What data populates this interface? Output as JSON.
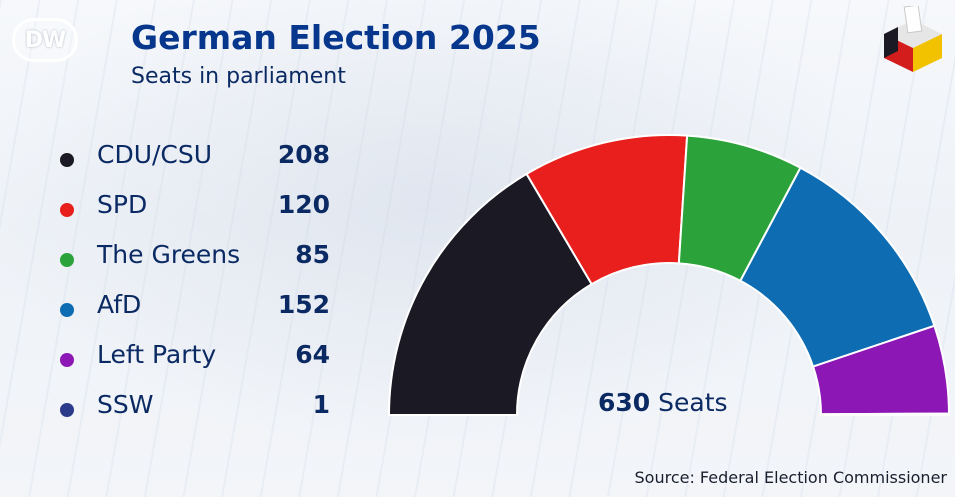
{
  "brand": {
    "logo_text": "DW"
  },
  "header": {
    "title": "German Election 2025",
    "subtitle": "Seats in parliament"
  },
  "chart_data": {
    "type": "pie",
    "layout": "semicircle (parliament)",
    "title": "German Election 2025",
    "subtitle": "Seats in parliament",
    "legend_position": "left",
    "categories": [
      "CDU/CSU",
      "SPD",
      "The Greens",
      "AfD",
      "Left Party",
      "SSW"
    ],
    "values": [
      208,
      120,
      85,
      152,
      64,
      1
    ],
    "colors": [
      "#1b1a24",
      "#e81f1c",
      "#2ca33a",
      "#0e6cb2",
      "#8d17b5",
      "#2c3a8a"
    ],
    "total_value": "630",
    "total_unit": "Seats"
  },
  "source": "Source: Federal Election Commissioner"
}
